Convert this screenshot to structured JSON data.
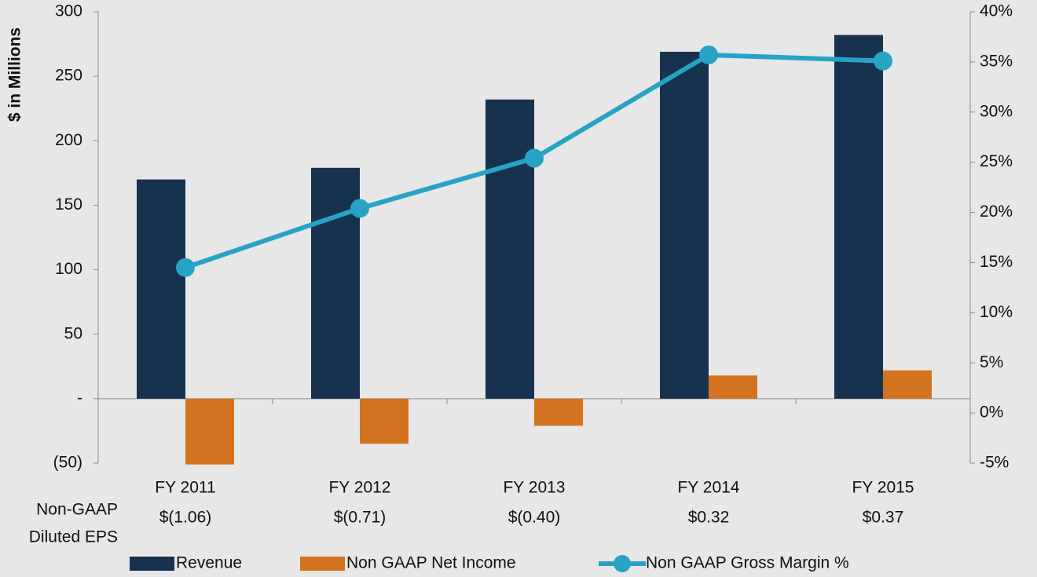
{
  "chart_data": {
    "type": "bar",
    "y_axis_label": "$ in Millions",
    "categories": [
      "FY 2011",
      "FY 2012",
      "FY 2013",
      "FY 2014",
      "FY 2015"
    ],
    "series": [
      {
        "name": "Revenue",
        "type": "bar",
        "color": "#17324f",
        "values": [
          170,
          179,
          232,
          269,
          282
        ]
      },
      {
        "name": "Non GAAP Net Income",
        "type": "bar",
        "color": "#d4731f",
        "values": [
          -51,
          -35,
          -21,
          18,
          22
        ]
      },
      {
        "name": "Non GAAP Gross Margin %",
        "type": "line",
        "axis": "y2",
        "color": "#27a3c6",
        "values": [
          14.5,
          20.4,
          25.4,
          35.7,
          35.1
        ]
      }
    ],
    "ylim": [
      -50,
      300
    ],
    "yticks": [
      {
        "value": -50,
        "label": "(50)"
      },
      {
        "value": 0,
        "label": "-"
      },
      50,
      100,
      150,
      200,
      250,
      300
    ],
    "y2lim": [
      -5,
      40
    ],
    "y2ticks": [
      {
        "value": -5,
        "label": "-5%"
      },
      {
        "value": 0,
        "label": "0%"
      },
      {
        "value": 5,
        "label": "5%"
      },
      {
        "value": 10,
        "label": "10%"
      },
      {
        "value": 15,
        "label": "15%"
      },
      {
        "value": 20,
        "label": "20%"
      },
      {
        "value": 25,
        "label": "25%"
      },
      {
        "value": 30,
        "label": "30%"
      },
      {
        "value": 35,
        "label": "35%"
      },
      {
        "value": 40,
        "label": "40%"
      }
    ],
    "eps_label": [
      "Non-GAAP",
      "Diluted EPS"
    ],
    "eps": [
      "$(1.06)",
      "$(0.71)",
      "$(0.40)",
      "$0.32",
      "$0.37"
    ],
    "legend": "bottom"
  }
}
